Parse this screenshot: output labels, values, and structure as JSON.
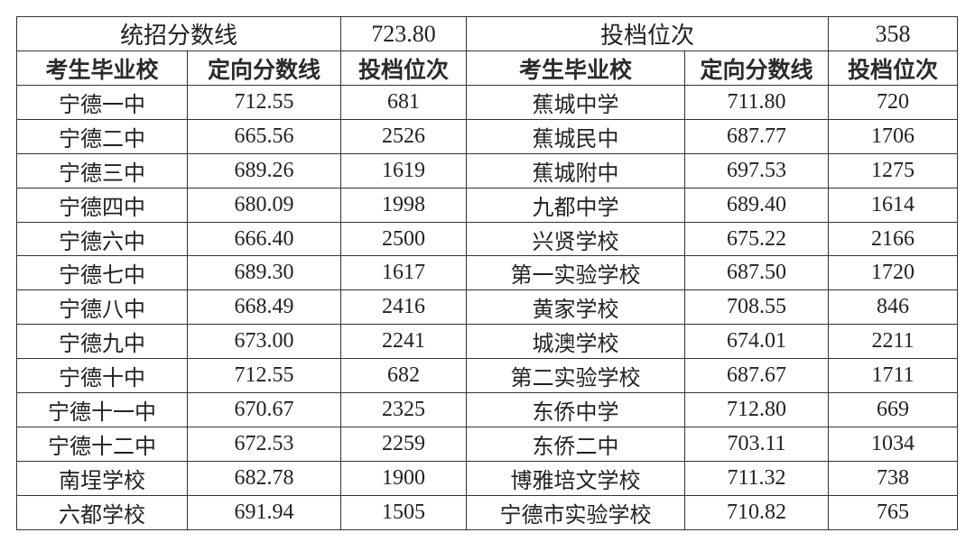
{
  "top": {
    "left_label": "统招分数线",
    "left_value": "723.80",
    "right_label": "投档位次",
    "right_value": "358"
  },
  "headers": [
    "考生毕业校",
    "定向分数线",
    "投档位次",
    "考生毕业校",
    "定向分数线",
    "投档位次"
  ],
  "rows": [
    [
      "宁德一中",
      "712.55",
      "681",
      "蕉城中学",
      "711.80",
      "720"
    ],
    [
      "宁德二中",
      "665.56",
      "2526",
      "蕉城民中",
      "687.77",
      "1706"
    ],
    [
      "宁德三中",
      "689.26",
      "1619",
      "蕉城附中",
      "697.53",
      "1275"
    ],
    [
      "宁德四中",
      "680.09",
      "1998",
      "九都中学",
      "689.40",
      "1614"
    ],
    [
      "宁德六中",
      "666.40",
      "2500",
      "兴贤学校",
      "675.22",
      "2166"
    ],
    [
      "宁德七中",
      "689.30",
      "1617",
      "第一实验学校",
      "687.50",
      "1720"
    ],
    [
      "宁德八中",
      "668.49",
      "2416",
      "黄家学校",
      "708.55",
      "846"
    ],
    [
      "宁德九中",
      "673.00",
      "2241",
      "城澳学校",
      "674.01",
      "2211"
    ],
    [
      "宁德十中",
      "712.55",
      "682",
      "第二实验学校",
      "687.67",
      "1711"
    ],
    [
      "宁德十一中",
      "670.67",
      "2325",
      "东侨中学",
      "712.80",
      "669"
    ],
    [
      "宁德十二中",
      "672.53",
      "2259",
      "东侨二中",
      "703.11",
      "1034"
    ],
    [
      "南埕学校",
      "682.78",
      "1900",
      "博雅培文学校",
      "711.32",
      "738"
    ],
    [
      "六都学校",
      "691.94",
      "1505",
      "宁德市实验学校",
      "710.82",
      "765"
    ]
  ]
}
